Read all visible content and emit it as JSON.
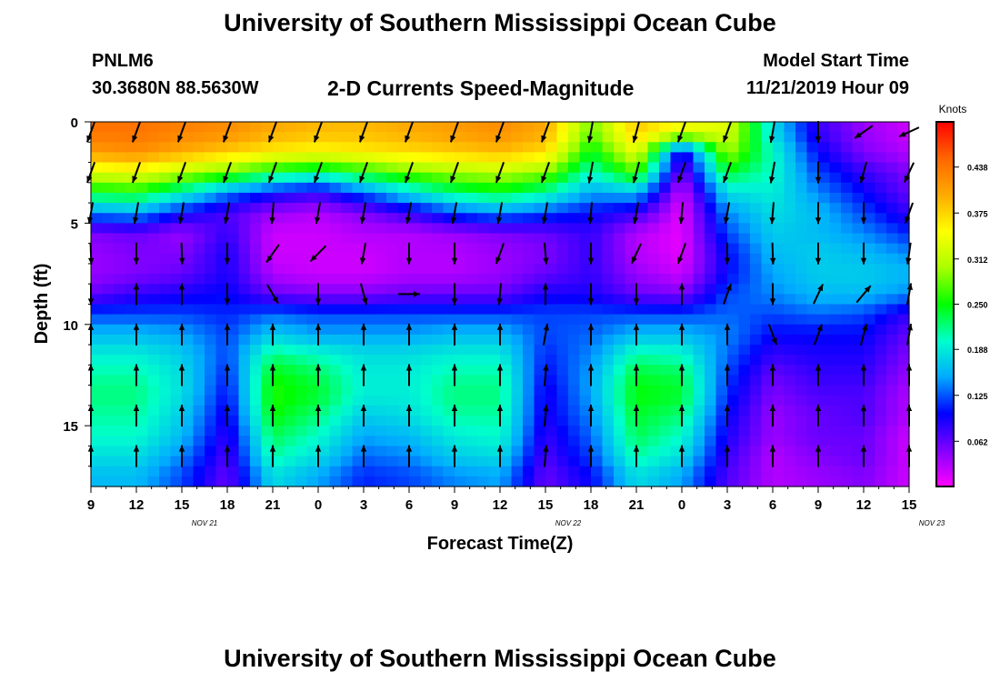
{
  "header": {
    "title": "University of Southern Mississippi Ocean Cube",
    "station_id": "PNLM6",
    "station_coords": "30.3680N 88.5630W",
    "plot_title": "2-D Currents Speed-Magnitude",
    "model_start_label": "Model Start Time",
    "model_start_value": "11/21/2019 Hour 09"
  },
  "footer": {
    "title": "University of Southern Mississippi Ocean Cube"
  },
  "chart_data": {
    "type": "heatmap",
    "xlabel": "Forecast Time(Z)",
    "ylabel": "Depth (ft)",
    "x_ticks": [
      "9",
      "12",
      "15",
      "18",
      "21",
      "0",
      "3",
      "6",
      "9",
      "12",
      "15",
      "18",
      "21",
      "0",
      "3",
      "6",
      "9",
      "12",
      "15"
    ],
    "date_labels": [
      {
        "label": "NOV  21",
        "hour_index": 7.5
      },
      {
        "label": "NOV  22",
        "hour_index": 31.5
      },
      {
        "label": "NOV  23",
        "hour_index": 55.5
      }
    ],
    "x_range_hours": [
      0,
      54
    ],
    "y_ticks": [
      0,
      5,
      10,
      15
    ],
    "ylim": [
      0,
      18
    ],
    "colorbar": {
      "unit": "Knots",
      "range": [
        0,
        0.5
      ],
      "tick_values": [
        0.062,
        0.125,
        0.188,
        0.25,
        0.312,
        0.375,
        0.438
      ],
      "tick_labels": [
        "0.062",
        "0.125",
        "0.188",
        "0.250",
        "0.312",
        "0.375",
        "0.438"
      ],
      "colors": [
        "#ff00ff",
        "#8000ff",
        "#0000ff",
        "#00aaff",
        "#00ffcc",
        "#00ff00",
        "#aaff00",
        "#ffff00",
        "#ffaa00",
        "#ff6600",
        "#ff0000"
      ]
    },
    "time_hours": [
      0,
      3,
      6,
      9,
      12,
      15,
      18,
      21,
      24,
      27,
      30,
      33,
      36,
      39,
      42,
      45,
      48,
      51,
      54
    ],
    "depth_ft": [
      0.5,
      1.5,
      2.5,
      3.5,
      4.5,
      5.5,
      6.5,
      7.5,
      8.5,
      9.5,
      10.5,
      11.5,
      12.5,
      13.5,
      14.5,
      15.5,
      16.5,
      17.5
    ],
    "speed_knots": [
      [
        0.44,
        0.44,
        0.43,
        0.42,
        0.4,
        0.39,
        0.39,
        0.4,
        0.41,
        0.42,
        0.4,
        0.28,
        0.38,
        0.34,
        0.33,
        0.18,
        0.08,
        0.04,
        0.02
      ],
      [
        0.41,
        0.42,
        0.4,
        0.38,
        0.36,
        0.35,
        0.36,
        0.37,
        0.38,
        0.39,
        0.37,
        0.24,
        0.34,
        0.08,
        0.3,
        0.2,
        0.1,
        0.05,
        0.03
      ],
      [
        0.33,
        0.34,
        0.31,
        0.28,
        0.24,
        0.22,
        0.25,
        0.28,
        0.3,
        0.31,
        0.29,
        0.2,
        0.27,
        0.05,
        0.24,
        0.2,
        0.12,
        0.08,
        0.05
      ],
      [
        0.24,
        0.25,
        0.2,
        0.14,
        0.1,
        0.08,
        0.13,
        0.18,
        0.22,
        0.24,
        0.21,
        0.15,
        0.16,
        0.02,
        0.18,
        0.19,
        0.14,
        0.1,
        0.06
      ],
      [
        0.14,
        0.15,
        0.1,
        0.07,
        0.04,
        0.03,
        0.05,
        0.08,
        0.12,
        0.14,
        0.12,
        0.1,
        0.08,
        0.01,
        0.14,
        0.18,
        0.16,
        0.12,
        0.08
      ],
      [
        0.05,
        0.06,
        0.04,
        0.08,
        0.02,
        0.02,
        0.03,
        0.03,
        0.04,
        0.05,
        0.06,
        0.08,
        0.03,
        0.01,
        0.12,
        0.17,
        0.16,
        0.14,
        0.11
      ],
      [
        0.04,
        0.05,
        0.05,
        0.09,
        0.02,
        0.02,
        0.02,
        0.03,
        0.03,
        0.04,
        0.05,
        0.08,
        0.03,
        0.01,
        0.1,
        0.16,
        0.17,
        0.16,
        0.14
      ],
      [
        0.04,
        0.05,
        0.06,
        0.09,
        0.03,
        0.02,
        0.02,
        0.03,
        0.03,
        0.04,
        0.06,
        0.08,
        0.04,
        0.02,
        0.1,
        0.15,
        0.17,
        0.17,
        0.16
      ],
      [
        0.06,
        0.08,
        0.09,
        0.1,
        0.06,
        0.05,
        0.05,
        0.06,
        0.06,
        0.06,
        0.09,
        0.09,
        0.06,
        0.05,
        0.12,
        0.14,
        0.16,
        0.16,
        0.14
      ],
      [
        0.12,
        0.12,
        0.12,
        0.11,
        0.13,
        0.12,
        0.12,
        0.12,
        0.12,
        0.12,
        0.12,
        0.12,
        0.12,
        0.12,
        0.13,
        0.12,
        0.13,
        0.12,
        0.08
      ],
      [
        0.16,
        0.16,
        0.15,
        0.12,
        0.17,
        0.15,
        0.15,
        0.15,
        0.16,
        0.16,
        0.12,
        0.13,
        0.16,
        0.16,
        0.14,
        0.1,
        0.1,
        0.1,
        0.06
      ],
      [
        0.19,
        0.19,
        0.17,
        0.12,
        0.22,
        0.2,
        0.18,
        0.18,
        0.19,
        0.19,
        0.11,
        0.14,
        0.21,
        0.2,
        0.13,
        0.08,
        0.09,
        0.09,
        0.05
      ],
      [
        0.21,
        0.21,
        0.18,
        0.11,
        0.25,
        0.23,
        0.19,
        0.19,
        0.21,
        0.21,
        0.1,
        0.15,
        0.24,
        0.23,
        0.12,
        0.06,
        0.08,
        0.08,
        0.04
      ],
      [
        0.22,
        0.22,
        0.18,
        0.1,
        0.26,
        0.24,
        0.19,
        0.19,
        0.22,
        0.22,
        0.09,
        0.15,
        0.25,
        0.24,
        0.11,
        0.05,
        0.07,
        0.07,
        0.03
      ],
      [
        0.21,
        0.21,
        0.17,
        0.09,
        0.25,
        0.22,
        0.17,
        0.18,
        0.21,
        0.21,
        0.09,
        0.14,
        0.24,
        0.22,
        0.1,
        0.04,
        0.06,
        0.07,
        0.03
      ],
      [
        0.2,
        0.2,
        0.16,
        0.08,
        0.23,
        0.2,
        0.15,
        0.16,
        0.19,
        0.2,
        0.08,
        0.13,
        0.23,
        0.2,
        0.09,
        0.04,
        0.06,
        0.06,
        0.02
      ],
      [
        0.18,
        0.18,
        0.14,
        0.07,
        0.21,
        0.18,
        0.13,
        0.14,
        0.17,
        0.18,
        0.07,
        0.12,
        0.21,
        0.18,
        0.08,
        0.03,
        0.05,
        0.06,
        0.02
      ],
      [
        0.16,
        0.16,
        0.12,
        0.06,
        0.18,
        0.15,
        0.11,
        0.12,
        0.14,
        0.15,
        0.06,
        0.1,
        0.18,
        0.15,
        0.07,
        0.03,
        0.04,
        0.05,
        0.02
      ]
    ],
    "arrow_depths_ft": [
      0.5,
      2.5,
      4.5,
      6.5,
      8.5,
      10.5,
      12.5,
      14.5,
      16.5
    ],
    "arrow_direction_deg": [
      [
        200,
        200,
        200,
        200,
        200,
        200,
        200,
        200,
        200,
        200,
        200,
        190,
        195,
        200,
        200,
        190,
        180,
        235,
        245
      ],
      [
        200,
        200,
        200,
        200,
        200,
        200,
        200,
        200,
        200,
        200,
        200,
        190,
        195,
        200,
        200,
        190,
        180,
        195,
        205
      ],
      [
        190,
        190,
        190,
        190,
        185,
        190,
        190,
        190,
        190,
        190,
        190,
        185,
        190,
        185,
        190,
        185,
        180,
        180,
        200
      ],
      [
        178,
        180,
        178,
        180,
        215,
        225,
        190,
        180,
        180,
        200,
        175,
        180,
        205,
        200,
        180,
        178,
        180,
        180,
        188
      ],
      [
        180,
        0,
        0,
        180,
        150,
        180,
        165,
        90,
        180,
        185,
        0,
        180,
        180,
        0,
        20,
        180,
        25,
        40,
        10
      ],
      [
        0,
        0,
        0,
        0,
        0,
        0,
        0,
        0,
        0,
        0,
        10,
        0,
        0,
        0,
        0,
        160,
        20,
        15,
        10
      ],
      [
        0,
        0,
        0,
        0,
        0,
        0,
        0,
        0,
        0,
        0,
        5,
        0,
        0,
        0,
        0,
        0,
        0,
        0,
        0
      ],
      [
        0,
        0,
        0,
        0,
        0,
        0,
        0,
        0,
        0,
        0,
        5,
        0,
        0,
        0,
        0,
        0,
        0,
        0,
        0
      ],
      [
        0,
        0,
        0,
        0,
        0,
        0,
        0,
        0,
        0,
        0,
        5,
        0,
        0,
        0,
        0,
        0,
        0,
        0,
        0
      ]
    ]
  }
}
